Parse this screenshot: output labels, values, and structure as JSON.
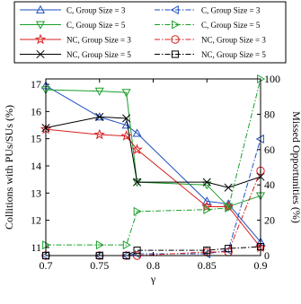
{
  "chart_data": {
    "type": "line",
    "x": [
      0.7,
      0.75,
      0.775,
      0.785,
      0.85,
      0.87,
      0.9
    ],
    "xlabel": "γ",
    "ylabel_left": "Collitions with PUs/SUs (%)",
    "ylabel_right": "Missed Opportunities (%)",
    "xlim": [
      0.7,
      0.9
    ],
    "ylim_left": [
      10.7,
      17.2
    ],
    "ylim_right": [
      0,
      100
    ],
    "xticks": [
      "0.7",
      "0.75",
      "0.8",
      "0.85",
      "0.9"
    ],
    "yticks_left": [
      "11",
      "12",
      "13",
      "14",
      "15",
      "16",
      "17"
    ],
    "yticks_right": [
      "0",
      "20",
      "40",
      "60",
      "80",
      "100"
    ],
    "grid": false,
    "legend_position": "top",
    "series": [
      {
        "name": "C, Group Size = 3",
        "axis": "left",
        "color": "#1f4fbf",
        "dash": "solid",
        "marker": "triangle-up",
        "values": [
          16.95,
          15.8,
          15.5,
          15.2,
          12.7,
          12.6,
          11.2
        ]
      },
      {
        "name": "C, Group Size = 5",
        "axis": "left",
        "color": "#1a9e2a",
        "dash": "solid",
        "marker": "triangle-down",
        "values": [
          16.8,
          16.75,
          16.7,
          13.4,
          13.3,
          12.5,
          12.9
        ]
      },
      {
        "name": "NC, Group Size = 3",
        "axis": "left",
        "color": "#d62020",
        "dash": "solid",
        "marker": "star",
        "values": [
          15.35,
          15.15,
          15.1,
          14.6,
          12.5,
          12.5,
          11.0
        ]
      },
      {
        "name": "NC, Group Size = 5",
        "axis": "left",
        "color": "#000000",
        "dash": "solid",
        "marker": "x",
        "values": [
          15.4,
          15.8,
          15.75,
          13.4,
          13.4,
          13.2,
          13.6
        ]
      },
      {
        "name": "C, Group Size = 3",
        "axis": "right",
        "color": "#1f4fbf",
        "dash": "dashdot",
        "marker": "triangle-left",
        "values": [
          0,
          0,
          0,
          1,
          1,
          3,
          66
        ]
      },
      {
        "name": "C, Group Size = 5",
        "axis": "right",
        "color": "#1a9e2a",
        "dash": "dashdot",
        "marker": "triangle-right",
        "values": [
          6,
          6,
          6,
          25,
          26,
          27,
          100
        ]
      },
      {
        "name": "NC, Group Size = 3",
        "axis": "right",
        "color": "#d62020",
        "dash": "dashdot",
        "marker": "circle",
        "values": [
          0,
          0,
          0,
          0,
          2,
          2,
          48
        ]
      },
      {
        "name": "NC, Group Size = 5",
        "axis": "right",
        "color": "#000000",
        "dash": "dashdot",
        "marker": "square",
        "values": [
          0,
          0,
          0,
          3,
          3,
          4,
          5
        ]
      }
    ]
  }
}
